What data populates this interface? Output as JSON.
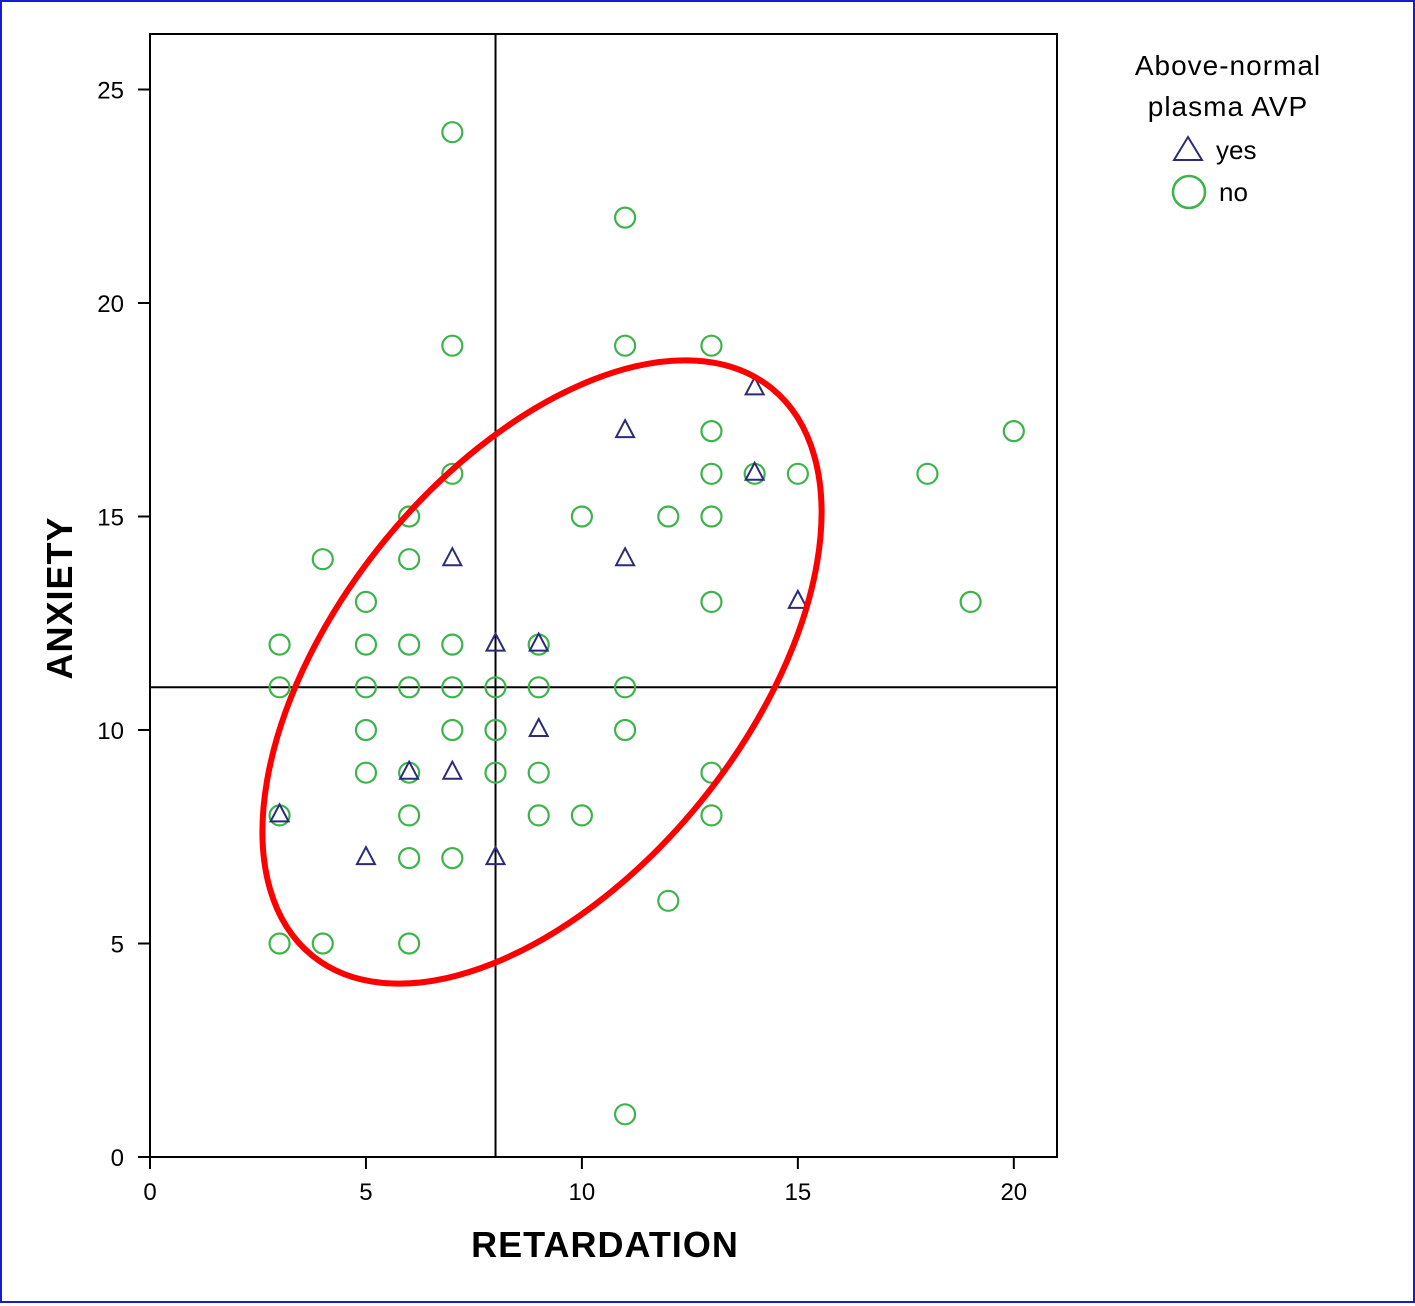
{
  "chart_data": {
    "type": "scatter",
    "xlabel": "RETARDATION",
    "ylabel": "ANXIETY",
    "xlim": [
      0,
      21
    ],
    "ylim": [
      0,
      26.3
    ],
    "xticks": [
      0,
      5,
      10,
      15,
      20
    ],
    "yticks": [
      0,
      5,
      10,
      15,
      20,
      25
    ],
    "reference_lines": {
      "x": 8,
      "y": 11
    },
    "grid": false,
    "legend": {
      "title_line1": "Above-normal",
      "title_line2": "plasma AVP",
      "placement": "top-right",
      "items": [
        {
          "label": "yes",
          "marker": "triangle",
          "color": "#2b2b7a"
        },
        {
          "label": "no",
          "marker": "circle",
          "color": "#3cb44b"
        }
      ]
    },
    "ellipse": {
      "color": "#ff0000"
    },
    "series": [
      {
        "name": "yes",
        "marker": "triangle",
        "color": "#2b2b7a",
        "points": [
          [
            3,
            8
          ],
          [
            5,
            7
          ],
          [
            6,
            9
          ],
          [
            7,
            9
          ],
          [
            7,
            14
          ],
          [
            8,
            7
          ],
          [
            8,
            12
          ],
          [
            9,
            10
          ],
          [
            9,
            12
          ],
          [
            11,
            17
          ],
          [
            11,
            14
          ],
          [
            14,
            18
          ],
          [
            14,
            16
          ],
          [
            15,
            13
          ]
        ]
      },
      {
        "name": "no",
        "marker": "circle",
        "color": "#3cb44b",
        "points": [
          [
            7,
            24
          ],
          [
            11,
            22
          ],
          [
            7,
            19
          ],
          [
            11,
            19
          ],
          [
            13,
            19
          ],
          [
            13,
            17
          ],
          [
            20,
            17
          ],
          [
            7,
            16
          ],
          [
            13,
            16
          ],
          [
            14,
            16
          ],
          [
            15,
            16
          ],
          [
            18,
            16
          ],
          [
            6,
            15
          ],
          [
            10,
            15
          ],
          [
            12,
            15
          ],
          [
            13,
            15
          ],
          [
            4,
            14
          ],
          [
            6,
            14
          ],
          [
            5,
            13
          ],
          [
            13,
            13
          ],
          [
            19,
            13
          ],
          [
            3,
            12
          ],
          [
            5,
            12
          ],
          [
            6,
            12
          ],
          [
            7,
            12
          ],
          [
            9,
            12
          ],
          [
            3,
            11
          ],
          [
            5,
            11
          ],
          [
            6,
            11
          ],
          [
            7,
            11
          ],
          [
            8,
            11
          ],
          [
            9,
            11
          ],
          [
            11,
            11
          ],
          [
            5,
            10
          ],
          [
            7,
            10
          ],
          [
            8,
            10
          ],
          [
            11,
            10
          ],
          [
            5,
            9
          ],
          [
            6,
            9
          ],
          [
            8,
            9
          ],
          [
            9,
            9
          ],
          [
            13,
            9
          ],
          [
            3,
            8
          ],
          [
            6,
            8
          ],
          [
            9,
            8
          ],
          [
            10,
            8
          ],
          [
            13,
            8
          ],
          [
            6,
            7
          ],
          [
            7,
            7
          ],
          [
            12,
            6
          ],
          [
            3,
            5
          ],
          [
            4,
            5
          ],
          [
            6,
            5
          ],
          [
            11,
            1
          ]
        ]
      }
    ]
  }
}
